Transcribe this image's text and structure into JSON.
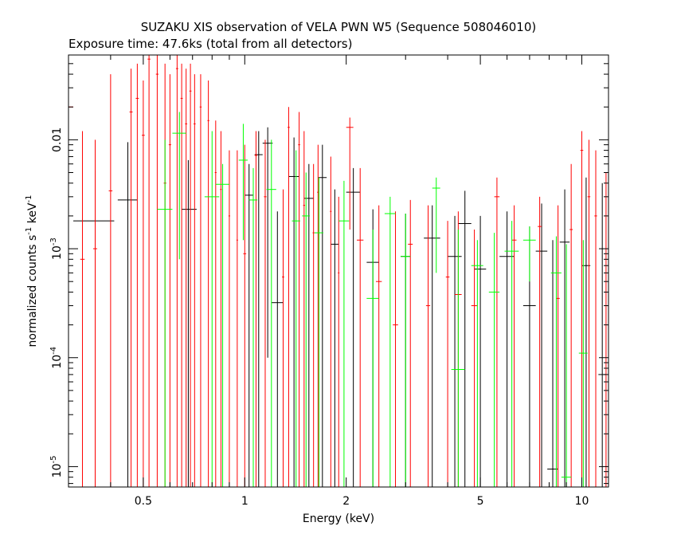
{
  "chart_data": {
    "type": "scatter",
    "title": "SUZAKU XIS observation of VELA PWN W5 (Sequence 508046010)",
    "subtitle": "Exposure time: 47.6ks (total from all detectors)",
    "xlabel": "Energy (keV)",
    "ylabel_main": "normalized counts s",
    "ylabel_exp1": "-1",
    "ylabel_mid": " keV",
    "ylabel_exp2": "-1",
    "x_scale": "log",
    "y_scale": "log",
    "xlim": [
      0.3,
      12
    ],
    "ylim": [
      6.5e-06,
      0.06
    ],
    "x_ticks": [
      {
        "value": 0.5,
        "label": "0.5"
      },
      {
        "value": 1,
        "label": "1"
      },
      {
        "value": 2,
        "label": "2"
      },
      {
        "value": 5,
        "label": "5"
      },
      {
        "value": 10,
        "label": "10"
      }
    ],
    "y_ticks": [
      {
        "value": 0.01,
        "label": "0.01",
        "mant": "",
        "exp": ""
      },
      {
        "value": 0.001,
        "label": "",
        "mant": "10",
        "exp": "-3"
      },
      {
        "value": 0.0001,
        "label": "",
        "mant": "10",
        "exp": "-4"
      },
      {
        "value": 1e-05,
        "label": "",
        "mant": "10",
        "exp": "-5"
      }
    ],
    "grid": false,
    "legend": "none",
    "series": [
      {
        "color": "#000000",
        "points": [
          {
            "x": 0.36,
            "xlo": 0.31,
            "xhi": 0.41,
            "y": 0.0018,
            "ylo": 6.5e-06,
            "yhi": 0.0052
          },
          {
            "x": 0.45,
            "xlo": 0.42,
            "xhi": 0.48,
            "y": 0.0028,
            "ylo": 6.5e-06,
            "yhi": 0.0095
          },
          {
            "x": 0.68,
            "xlo": 0.65,
            "xhi": 0.72,
            "y": 0.0023,
            "ylo": 6.5e-06,
            "yhi": 0.0065
          },
          {
            "x": 1.03,
            "xlo": 1.0,
            "xhi": 1.06,
            "y": 0.0031,
            "ylo": 6.5e-06,
            "yhi": 0.006
          },
          {
            "x": 1.1,
            "xlo": 1.07,
            "xhi": 1.13,
            "y": 0.0073,
            "ylo": 6.5e-06,
            "yhi": 0.012
          },
          {
            "x": 1.17,
            "xlo": 1.13,
            "xhi": 1.21,
            "y": 0.0093,
            "ylo": 0.0001,
            "yhi": 0.013
          },
          {
            "x": 1.25,
            "xlo": 1.2,
            "xhi": 1.3,
            "y": 0.00032,
            "ylo": 6.5e-06,
            "yhi": 0.0022
          },
          {
            "x": 1.4,
            "xlo": 1.35,
            "xhi": 1.45,
            "y": 0.0046,
            "ylo": 6.5e-06,
            "yhi": 0.0105
          },
          {
            "x": 1.55,
            "xlo": 1.5,
            "xhi": 1.6,
            "y": 0.0029,
            "ylo": 6.5e-06,
            "yhi": 0.006
          },
          {
            "x": 1.7,
            "xlo": 1.65,
            "xhi": 1.75,
            "y": 0.0045,
            "ylo": 6.5e-06,
            "yhi": 0.009
          },
          {
            "x": 1.85,
            "xlo": 1.8,
            "xhi": 1.9,
            "y": 0.0011,
            "ylo": 6.5e-06,
            "yhi": 0.0035
          },
          {
            "x": 2.1,
            "xlo": 2.0,
            "xhi": 2.2,
            "y": 0.0033,
            "ylo": 6.5e-06,
            "yhi": 0.0055
          },
          {
            "x": 2.4,
            "xlo": 2.3,
            "xhi": 2.5,
            "y": 0.00075,
            "ylo": 6.5e-06,
            "yhi": 0.0023
          },
          {
            "x": 3.0,
            "xlo": 2.9,
            "xhi": 3.1,
            "y": 0.00085,
            "ylo": 6.5e-06,
            "yhi": 0.0021
          },
          {
            "x": 3.6,
            "xlo": 3.4,
            "xhi": 3.8,
            "y": 0.00125,
            "ylo": 6.5e-06,
            "yhi": 0.0025
          },
          {
            "x": 4.2,
            "xlo": 4.0,
            "xhi": 4.4,
            "y": 0.00085,
            "ylo": 6.5e-06,
            "yhi": 0.002
          },
          {
            "x": 4.5,
            "xlo": 4.3,
            "xhi": 4.7,
            "y": 0.0017,
            "ylo": 6.5e-06,
            "yhi": 0.0034
          },
          {
            "x": 5.0,
            "xlo": 4.8,
            "xhi": 5.2,
            "y": 0.00065,
            "ylo": 6.5e-06,
            "yhi": 0.002
          },
          {
            "x": 6.0,
            "xlo": 5.7,
            "xhi": 6.3,
            "y": 0.00085,
            "ylo": 6.5e-06,
            "yhi": 0.0022
          },
          {
            "x": 7.0,
            "xlo": 6.7,
            "xhi": 7.3,
            "y": 0.0003,
            "ylo": 6.5e-06,
            "yhi": 0.0016
          },
          {
            "x": 7.6,
            "xlo": 7.3,
            "xhi": 7.9,
            "y": 0.00095,
            "ylo": 6.5e-06,
            "yhi": 0.0026
          },
          {
            "x": 8.2,
            "xlo": 7.9,
            "xhi": 8.5,
            "y": 9.5e-06,
            "ylo": 6.5e-06,
            "yhi": 0.0012
          },
          {
            "x": 8.9,
            "xlo": 8.6,
            "xhi": 9.2,
            "y": 0.00115,
            "ylo": 6.5e-06,
            "yhi": 0.0035
          },
          {
            "x": 10.3,
            "xlo": 10.0,
            "xhi": 10.6,
            "y": 0.0007,
            "ylo": 6.5e-06,
            "yhi": 0.0045
          },
          {
            "x": 11.5,
            "xlo": 11.2,
            "xhi": 11.8,
            "y": 7e-05,
            "ylo": 6.5e-06,
            "yhi": 0.004
          }
        ]
      },
      {
        "color": "#ff0000",
        "points": [
          {
            "x": 0.3,
            "xlo": 0.3,
            "xhi": 0.31,
            "y": 0.02,
            "ylo": 6.5e-06,
            "yhi": 0.06
          },
          {
            "x": 0.33,
            "xlo": 0.325,
            "xhi": 0.335,
            "y": 0.0008,
            "ylo": 6.5e-06,
            "yhi": 0.012
          },
          {
            "x": 0.36,
            "xlo": 0.355,
            "xhi": 0.365,
            "y": 0.001,
            "ylo": 6.5e-06,
            "yhi": 0.01
          },
          {
            "x": 0.4,
            "xlo": 0.395,
            "xhi": 0.405,
            "y": 0.0034,
            "ylo": 6.5e-06,
            "yhi": 0.04
          },
          {
            "x": 0.46,
            "xlo": 0.455,
            "xhi": 0.465,
            "y": 0.018,
            "ylo": 6.5e-06,
            "yhi": 0.045
          },
          {
            "x": 0.48,
            "xlo": 0.475,
            "xhi": 0.485,
            "y": 0.024,
            "ylo": 6.5e-06,
            "yhi": 0.05
          },
          {
            "x": 0.5,
            "xlo": 0.495,
            "xhi": 0.505,
            "y": 0.011,
            "ylo": 6.5e-06,
            "yhi": 0.035
          },
          {
            "x": 0.52,
            "xlo": 0.515,
            "xhi": 0.525,
            "y": 0.055,
            "ylo": 6.5e-06,
            "yhi": 0.06
          },
          {
            "x": 0.55,
            "xlo": 0.545,
            "xhi": 0.555,
            "y": 0.04,
            "ylo": 6.5e-06,
            "yhi": 0.06
          },
          {
            "x": 0.58,
            "xlo": 0.575,
            "xhi": 0.585,
            "y": 0.004,
            "ylo": 6.5e-06,
            "yhi": 0.05
          },
          {
            "x": 0.6,
            "xlo": 0.595,
            "xhi": 0.605,
            "y": 0.009,
            "ylo": 6.5e-06,
            "yhi": 0.04
          },
          {
            "x": 0.63,
            "xlo": 0.625,
            "xhi": 0.635,
            "y": 0.045,
            "ylo": 6.5e-06,
            "yhi": 0.06
          },
          {
            "x": 0.65,
            "xlo": 0.645,
            "xhi": 0.655,
            "y": 0.024,
            "ylo": 6.5e-06,
            "yhi": 0.05
          },
          {
            "x": 0.67,
            "xlo": 0.665,
            "xhi": 0.675,
            "y": 0.014,
            "ylo": 6.5e-06,
            "yhi": 0.045
          },
          {
            "x": 0.69,
            "xlo": 0.685,
            "xhi": 0.695,
            "y": 0.028,
            "ylo": 6.5e-06,
            "yhi": 0.05
          },
          {
            "x": 0.71,
            "xlo": 0.705,
            "xhi": 0.715,
            "y": 0.014,
            "ylo": 6.5e-06,
            "yhi": 0.04
          },
          {
            "x": 0.74,
            "xlo": 0.735,
            "xhi": 0.745,
            "y": 0.02,
            "ylo": 6.5e-06,
            "yhi": 0.04
          },
          {
            "x": 0.78,
            "xlo": 0.775,
            "xhi": 0.785,
            "y": 0.015,
            "ylo": 6.5e-06,
            "yhi": 0.035
          },
          {
            "x": 0.82,
            "xlo": 0.815,
            "xhi": 0.825,
            "y": 0.005,
            "ylo": 6.5e-06,
            "yhi": 0.015
          },
          {
            "x": 0.85,
            "xlo": 0.845,
            "xhi": 0.855,
            "y": 0.0035,
            "ylo": 6.5e-06,
            "yhi": 0.012
          },
          {
            "x": 0.9,
            "xlo": 0.895,
            "xhi": 0.905,
            "y": 0.002,
            "ylo": 6.5e-06,
            "yhi": 0.008
          },
          {
            "x": 0.95,
            "xlo": 0.945,
            "xhi": 0.955,
            "y": 0.0012,
            "ylo": 6.5e-06,
            "yhi": 0.008
          },
          {
            "x": 1.0,
            "xlo": 0.99,
            "xhi": 1.01,
            "y": 0.0009,
            "ylo": 6.5e-06,
            "yhi": 0.009
          },
          {
            "x": 1.08,
            "xlo": 1.07,
            "xhi": 1.09,
            "y": 0.0072,
            "ylo": 6.5e-06,
            "yhi": 0.012
          },
          {
            "x": 1.15,
            "xlo": 1.14,
            "xhi": 1.16,
            "y": 0.003,
            "ylo": 6.5e-06,
            "yhi": 0.01
          },
          {
            "x": 1.3,
            "xlo": 1.29,
            "xhi": 1.31,
            "y": 0.00055,
            "ylo": 6.5e-06,
            "yhi": 0.0035
          },
          {
            "x": 1.35,
            "xlo": 1.34,
            "xhi": 1.36,
            "y": 0.013,
            "ylo": 6.5e-06,
            "yhi": 0.02
          },
          {
            "x": 1.45,
            "xlo": 1.44,
            "xhi": 1.46,
            "y": 0.009,
            "ylo": 6.5e-06,
            "yhi": 0.018
          },
          {
            "x": 1.5,
            "xlo": 1.49,
            "xhi": 1.51,
            "y": 0.0025,
            "ylo": 6.5e-06,
            "yhi": 0.012
          },
          {
            "x": 1.6,
            "xlo": 1.59,
            "xhi": 1.61,
            "y": 0.0014,
            "ylo": 6.5e-06,
            "yhi": 0.006
          },
          {
            "x": 1.65,
            "xlo": 1.64,
            "xhi": 1.66,
            "y": 0.0033,
            "ylo": 6.5e-06,
            "yhi": 0.009
          },
          {
            "x": 1.8,
            "xlo": 1.79,
            "xhi": 1.81,
            "y": 0.0022,
            "ylo": 6.5e-06,
            "yhi": 0.007
          },
          {
            "x": 1.9,
            "xlo": 1.89,
            "xhi": 1.91,
            "y": 0.0006,
            "ylo": 6.5e-06,
            "yhi": 0.003
          },
          {
            "x": 2.05,
            "xlo": 2.0,
            "xhi": 2.1,
            "y": 0.013,
            "ylo": 0.0015,
            "yhi": 0.016
          },
          {
            "x": 2.2,
            "xlo": 2.15,
            "xhi": 2.25,
            "y": 0.0012,
            "ylo": 6.5e-06,
            "yhi": 0.0055
          },
          {
            "x": 2.5,
            "xlo": 2.45,
            "xhi": 2.55,
            "y": 0.0005,
            "ylo": 6.5e-06,
            "yhi": 0.0025
          },
          {
            "x": 2.8,
            "xlo": 2.75,
            "xhi": 2.85,
            "y": 0.0002,
            "ylo": 6.5e-06,
            "yhi": 0.0022
          },
          {
            "x": 3.1,
            "xlo": 3.05,
            "xhi": 3.15,
            "y": 0.0011,
            "ylo": 6.5e-06,
            "yhi": 0.0028
          },
          {
            "x": 3.5,
            "xlo": 3.45,
            "xhi": 3.55,
            "y": 0.0003,
            "ylo": 6.5e-06,
            "yhi": 0.0025
          },
          {
            "x": 4.0,
            "xlo": 3.95,
            "xhi": 4.05,
            "y": 0.00055,
            "ylo": 6.5e-06,
            "yhi": 0.0018
          },
          {
            "x": 4.3,
            "xlo": 4.2,
            "xhi": 4.4,
            "y": 0.00038,
            "ylo": 6.5e-06,
            "yhi": 0.0022
          },
          {
            "x": 4.8,
            "xlo": 4.7,
            "xhi": 4.9,
            "y": 0.0003,
            "ylo": 6.5e-06,
            "yhi": 0.0015
          },
          {
            "x": 5.6,
            "xlo": 5.5,
            "xhi": 5.7,
            "y": 0.003,
            "ylo": 6.5e-06,
            "yhi": 0.0045
          },
          {
            "x": 6.3,
            "xlo": 6.2,
            "xhi": 6.4,
            "y": 0.0012,
            "ylo": 6.5e-06,
            "yhi": 0.0025
          },
          {
            "x": 7.5,
            "xlo": 7.4,
            "xhi": 7.6,
            "y": 0.0016,
            "ylo": 6.5e-06,
            "yhi": 0.003
          },
          {
            "x": 8.5,
            "xlo": 8.4,
            "xhi": 8.6,
            "y": 0.00035,
            "ylo": 6.5e-06,
            "yhi": 0.0025
          },
          {
            "x": 9.3,
            "xlo": 9.2,
            "xhi": 9.4,
            "y": 0.0015,
            "ylo": 6.5e-06,
            "yhi": 0.006
          },
          {
            "x": 10.0,
            "xlo": 9.9,
            "xhi": 10.1,
            "y": 0.008,
            "ylo": 6.5e-06,
            "yhi": 0.012
          },
          {
            "x": 10.5,
            "xlo": 10.4,
            "xhi": 10.6,
            "y": 0.003,
            "ylo": 6.5e-06,
            "yhi": 0.01
          },
          {
            "x": 11.0,
            "xlo": 10.9,
            "xhi": 11.1,
            "y": 0.002,
            "ylo": 6.5e-06,
            "yhi": 0.008
          },
          {
            "x": 11.8,
            "xlo": 11.7,
            "xhi": 11.9,
            "y": 1e-05,
            "ylo": 6.5e-06,
            "yhi": 0.005
          }
        ]
      },
      {
        "color": "#00ff00",
        "points": [
          {
            "x": 0.58,
            "xlo": 0.55,
            "xhi": 0.61,
            "y": 0.0023,
            "ylo": 6.5e-06,
            "yhi": 0.01
          },
          {
            "x": 0.64,
            "xlo": 0.61,
            "xhi": 0.67,
            "y": 0.0115,
            "ylo": 0.0008,
            "yhi": 0.018
          },
          {
            "x": 0.8,
            "xlo": 0.76,
            "xhi": 0.84,
            "y": 0.003,
            "ylo": 6.5e-06,
            "yhi": 0.012
          },
          {
            "x": 0.86,
            "xlo": 0.82,
            "xhi": 0.9,
            "y": 0.0039,
            "ylo": 6.5e-06,
            "yhi": 0.006
          },
          {
            "x": 0.99,
            "xlo": 0.96,
            "xhi": 1.02,
            "y": 0.0065,
            "ylo": 0.0012,
            "yhi": 0.014
          },
          {
            "x": 1.06,
            "xlo": 1.03,
            "xhi": 1.09,
            "y": 0.0028,
            "ylo": 6.5e-06,
            "yhi": 0.0055
          },
          {
            "x": 1.2,
            "xlo": 1.16,
            "xhi": 1.24,
            "y": 0.0035,
            "ylo": 6.5e-06,
            "yhi": 0.01
          },
          {
            "x": 1.42,
            "xlo": 1.38,
            "xhi": 1.46,
            "y": 0.0018,
            "ylo": 6.5e-06,
            "yhi": 0.008
          },
          {
            "x": 1.52,
            "xlo": 1.48,
            "xhi": 1.56,
            "y": 0.002,
            "ylo": 6.5e-06,
            "yhi": 0.005
          },
          {
            "x": 1.66,
            "xlo": 1.61,
            "xhi": 1.71,
            "y": 0.0014,
            "ylo": 6.5e-06,
            "yhi": 0.0045
          },
          {
            "x": 1.97,
            "xlo": 1.9,
            "xhi": 2.04,
            "y": 0.0018,
            "ylo": 6.5e-06,
            "yhi": 0.0042
          },
          {
            "x": 2.4,
            "xlo": 2.3,
            "xhi": 2.5,
            "y": 0.00035,
            "ylo": 6.5e-06,
            "yhi": 0.0015
          },
          {
            "x": 2.7,
            "xlo": 2.6,
            "xhi": 2.8,
            "y": 0.0021,
            "ylo": 6.5e-06,
            "yhi": 0.003
          },
          {
            "x": 3.0,
            "xlo": 2.9,
            "xhi": 3.1,
            "y": 0.00085,
            "ylo": 6.5e-06,
            "yhi": 0.0021
          },
          {
            "x": 3.7,
            "xlo": 3.6,
            "xhi": 3.8,
            "y": 0.0036,
            "ylo": 0.0006,
            "yhi": 0.0045
          },
          {
            "x": 4.3,
            "xlo": 4.1,
            "xhi": 4.5,
            "y": 7.8e-05,
            "ylo": 6.5e-06,
            "yhi": 0.0015
          },
          {
            "x": 4.9,
            "xlo": 4.7,
            "xhi": 5.1,
            "y": 0.0007,
            "ylo": 6.5e-06,
            "yhi": 0.0012
          },
          {
            "x": 5.5,
            "xlo": 5.3,
            "xhi": 5.7,
            "y": 0.0004,
            "ylo": 6.5e-06,
            "yhi": 0.0014
          },
          {
            "x": 6.2,
            "xlo": 5.9,
            "xhi": 6.5,
            "y": 0.00095,
            "ylo": 6.5e-06,
            "yhi": 0.0018
          },
          {
            "x": 7.0,
            "xlo": 6.7,
            "xhi": 7.3,
            "y": 0.0012,
            "ylo": 0.0005,
            "yhi": 0.0016
          },
          {
            "x": 8.4,
            "xlo": 8.1,
            "xhi": 8.7,
            "y": 0.0006,
            "ylo": 6.5e-06,
            "yhi": 0.0013
          },
          {
            "x": 9.0,
            "xlo": 8.7,
            "xhi": 9.3,
            "y": 8e-06,
            "ylo": 6.5e-06,
            "yhi": 0.0011
          },
          {
            "x": 10.1,
            "xlo": 9.8,
            "xhi": 10.4,
            "y": 0.00011,
            "ylo": 6.5e-06,
            "yhi": 0.0012
          }
        ]
      }
    ]
  }
}
